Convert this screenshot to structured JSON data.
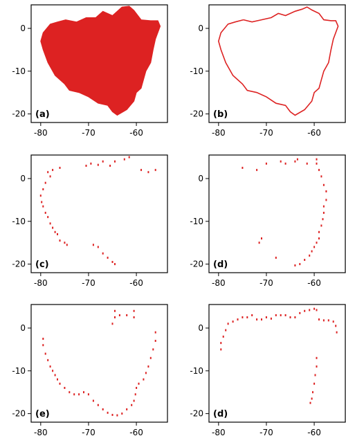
{
  "figure": {
    "background": "#ffffff",
    "series_color": "#dd2222"
  },
  "chart_data": [
    {
      "type": "scatter",
      "panel": "(a)",
      "description": "filled region",
      "xlim": [
        -82,
        -53.5
      ],
      "ylim": [
        -22,
        5.5
      ],
      "xticks": [
        "-80",
        "-70",
        "-60"
      ],
      "yticks": [
        "0",
        "-10",
        "-20"
      ],
      "fill": true,
      "outline": [
        [
          -74.8,
          2
        ],
        [
          -72.5,
          1.5
        ],
        [
          -70.5,
          2.5
        ],
        [
          -68.5,
          2.5
        ],
        [
          -67,
          4
        ],
        [
          -65,
          3
        ],
        [
          -63,
          5
        ],
        [
          -61.5,
          5.2
        ],
        [
          -60.5,
          4.2
        ],
        [
          -59,
          2
        ],
        [
          -57,
          1.8
        ],
        [
          -55.5,
          1.8
        ],
        [
          -55,
          0.5
        ],
        [
          -56,
          -2.5
        ],
        [
          -56.5,
          -5
        ],
        [
          -57,
          -8
        ],
        [
          -58,
          -10
        ],
        [
          -58.5,
          -12
        ],
        [
          -59,
          -14
        ],
        [
          -60,
          -15
        ],
        [
          -60.5,
          -17
        ],
        [
          -62,
          -19
        ],
        [
          -64,
          -20.3
        ],
        [
          -65,
          -19.5
        ],
        [
          -66,
          -18
        ],
        [
          -68,
          -17.5
        ],
        [
          -70,
          -16
        ],
        [
          -72,
          -15
        ],
        [
          -74,
          -14.5
        ],
        [
          -75,
          -13
        ],
        [
          -77,
          -11
        ],
        [
          -78.5,
          -8
        ],
        [
          -79.5,
          -5
        ],
        [
          -80,
          -3
        ],
        [
          -79.5,
          -1
        ],
        [
          -78,
          1
        ],
        [
          -76.5,
          1.5
        ]
      ]
    },
    {
      "type": "line",
      "panel": "(b)",
      "description": "boundary outline",
      "xlim": [
        -82,
        -53.5
      ],
      "ylim": [
        -22,
        5.5
      ],
      "xticks": [
        "-80",
        "-70",
        "-60"
      ],
      "yticks": [
        "0",
        "-10",
        "-20"
      ],
      "points": [
        [
          -74.8,
          2
        ],
        [
          -73,
          1.5
        ],
        [
          -71,
          2
        ],
        [
          -69,
          2.5
        ],
        [
          -67.5,
          3.5
        ],
        [
          -66,
          3
        ],
        [
          -64,
          4
        ],
        [
          -62.5,
          4.5
        ],
        [
          -61.5,
          5
        ],
        [
          -60.5,
          4.3
        ],
        [
          -59,
          3.5
        ],
        [
          -58,
          2
        ],
        [
          -56.5,
          1.8
        ],
        [
          -55.5,
          1.8
        ],
        [
          -55,
          0.5
        ],
        [
          -56,
          -2.5
        ],
        [
          -56.5,
          -5
        ],
        [
          -57,
          -8
        ],
        [
          -58,
          -10
        ],
        [
          -58.5,
          -12
        ],
        [
          -59,
          -14
        ],
        [
          -60,
          -15
        ],
        [
          -60.5,
          -17
        ],
        [
          -62,
          -19
        ],
        [
          -64,
          -20.3
        ],
        [
          -65,
          -19.5
        ],
        [
          -66,
          -18
        ],
        [
          -68,
          -17.5
        ],
        [
          -70,
          -16
        ],
        [
          -72,
          -15
        ],
        [
          -74,
          -14.5
        ],
        [
          -75,
          -13
        ],
        [
          -77,
          -11
        ],
        [
          -78.5,
          -8
        ],
        [
          -79.5,
          -5
        ],
        [
          -80,
          -3
        ],
        [
          -79.5,
          -1
        ],
        [
          -78,
          1
        ],
        [
          -76.5,
          1.5
        ],
        [
          -74.8,
          2
        ]
      ]
    },
    {
      "type": "scatter",
      "panel": "(c)",
      "description": "boundary points subset",
      "xlim": [
        -82,
        -53.5
      ],
      "ylim": [
        -22,
        5.5
      ],
      "xticks": [
        "-80",
        "-70",
        "-60"
      ],
      "yticks": [
        "0",
        "-10",
        "-20"
      ],
      "points": [
        [
          -78.5,
          1.5
        ],
        [
          -78,
          0.5
        ],
        [
          -77.5,
          2
        ],
        [
          -76,
          2.5
        ],
        [
          -79,
          -1
        ],
        [
          -79.5,
          -2.5
        ],
        [
          -80,
          -4
        ],
        [
          -79.8,
          -5.5
        ],
        [
          -79.5,
          -6.5
        ],
        [
          -79,
          -8
        ],
        [
          -78.5,
          -9
        ],
        [
          -78,
          -10.5
        ],
        [
          -77.5,
          -11.5
        ],
        [
          -77,
          -12.5
        ],
        [
          -76.5,
          -13
        ],
        [
          -76,
          -14.5
        ],
        [
          -75,
          -15
        ],
        [
          -74.5,
          -15.5
        ],
        [
          -70.5,
          3
        ],
        [
          -69.5,
          3.5
        ],
        [
          -68,
          3.2
        ],
        [
          -67,
          4
        ],
        [
          -65.5,
          3
        ],
        [
          -64.5,
          4
        ],
        [
          -62.5,
          4.5
        ],
        [
          -61.5,
          5
        ],
        [
          -59,
          2
        ],
        [
          -57.5,
          1.5
        ],
        [
          -56,
          2
        ],
        [
          -69,
          -15.5
        ],
        [
          -68,
          -16
        ],
        [
          -67,
          -17.5
        ],
        [
          -66,
          -18.5
        ],
        [
          -65,
          -19.5
        ],
        [
          -64.5,
          -20
        ]
      ]
    },
    {
      "type": "scatter",
      "panel": "(d)",
      "description": "boundary points subset",
      "xlim": [
        -82,
        -53.5
      ],
      "ylim": [
        -22,
        5.5
      ],
      "xticks": [
        "-80",
        "-70",
        "-60"
      ],
      "yticks": [
        "0",
        "-10",
        "-20"
      ],
      "points": [
        [
          -75,
          2.5
        ],
        [
          -72,
          2
        ],
        [
          -70,
          3.5
        ],
        [
          -67,
          4
        ],
        [
          -66,
          3.5
        ],
        [
          -64,
          4
        ],
        [
          -63.5,
          4.5
        ],
        [
          -61.5,
          3.5
        ],
        [
          -59.5,
          4.5
        ],
        [
          -59.5,
          3.5
        ],
        [
          -59,
          2
        ],
        [
          -58.5,
          0.5
        ],
        [
          -58,
          -1.5
        ],
        [
          -57.5,
          -3
        ],
        [
          -57.5,
          -5
        ],
        [
          -58,
          -6.5
        ],
        [
          -58,
          -8
        ],
        [
          -58.2,
          -9.5
        ],
        [
          -58.5,
          -11
        ],
        [
          -59,
          -12.5
        ],
        [
          -59,
          -14
        ],
        [
          -59.5,
          -15
        ],
        [
          -60,
          -16
        ],
        [
          -60.5,
          -17
        ],
        [
          -61,
          -18
        ],
        [
          -62,
          -19
        ],
        [
          -63,
          -20
        ],
        [
          -64,
          -20.3
        ],
        [
          -71,
          -14
        ],
        [
          -71.5,
          -15
        ],
        [
          -68,
          -18.5
        ]
      ]
    },
    {
      "type": "scatter",
      "panel": "(e)",
      "description": "boundary points subset",
      "xlim": [
        -82,
        -53.5
      ],
      "ylim": [
        -22,
        5.5
      ],
      "xticks": [
        "-80",
        "-70",
        "-60"
      ],
      "yticks": [
        "0",
        "-10",
        "-20"
      ],
      "points": [
        [
          -79.5,
          -2.5
        ],
        [
          -79.5,
          -4
        ],
        [
          -79,
          -6
        ],
        [
          -78.5,
          -7.5
        ],
        [
          -78,
          -9
        ],
        [
          -77.5,
          -10
        ],
        [
          -77,
          -11
        ],
        [
          -76.5,
          -12
        ],
        [
          -76,
          -13
        ],
        [
          -75,
          -14
        ],
        [
          -74,
          -15
        ],
        [
          -73,
          -15.5
        ],
        [
          -72,
          -15.5
        ],
        [
          -71,
          -15
        ],
        [
          -70,
          -15.5
        ],
        [
          -69,
          -17
        ],
        [
          -68,
          -18
        ],
        [
          -67,
          -19
        ],
        [
          -66,
          -19.8
        ],
        [
          -65,
          -20.3
        ],
        [
          -64,
          -20.4
        ],
        [
          -63,
          -20
        ],
        [
          -62,
          -19
        ],
        [
          -61,
          -18
        ],
        [
          -60.5,
          -17
        ],
        [
          -60.2,
          -15.5
        ],
        [
          -60,
          -14
        ],
        [
          -59.5,
          -13
        ],
        [
          -58.5,
          -12
        ],
        [
          -58,
          -10.5
        ],
        [
          -57.5,
          -9
        ],
        [
          -57,
          -7
        ],
        [
          -56.5,
          -5
        ],
        [
          -56,
          -3
        ],
        [
          -56,
          -1
        ],
        [
          -65,
          1
        ],
        [
          -64.5,
          2.5
        ],
        [
          -64.5,
          4
        ],
        [
          -63.5,
          3
        ],
        [
          -62,
          3
        ],
        [
          -60.5,
          4
        ],
        [
          -60.5,
          2.5
        ]
      ]
    },
    {
      "type": "scatter",
      "panel": "(d)",
      "description": "boundary points subset",
      "xlim": [
        -82,
        -53.5
      ],
      "ylim": [
        -22,
        5.5
      ],
      "xticks": [
        "-80",
        "-70",
        "-60"
      ],
      "yticks": [
        "0",
        "-10",
        "-20"
      ],
      "points": [
        [
          -79.5,
          -5
        ],
        [
          -79.5,
          -3.5
        ],
        [
          -79,
          -2
        ],
        [
          -78.5,
          -0.5
        ],
        [
          -78,
          1
        ],
        [
          -77,
          1.5
        ],
        [
          -76,
          2
        ],
        [
          -75,
          2.5
        ],
        [
          -74,
          2.5
        ],
        [
          -73,
          3
        ],
        [
          -72,
          2
        ],
        [
          -71,
          2
        ],
        [
          -70,
          2.5
        ],
        [
          -69,
          2.2
        ],
        [
          -68,
          3
        ],
        [
          -67,
          3
        ],
        [
          -66,
          3
        ],
        [
          -65,
          2.5
        ],
        [
          -64,
          2.5
        ],
        [
          -63,
          3.5
        ],
        [
          -62,
          4
        ],
        [
          -61,
          4.2
        ],
        [
          -60,
          4.5
        ],
        [
          -59.5,
          4.2
        ],
        [
          -59,
          2
        ],
        [
          -58,
          1.8
        ],
        [
          -57,
          1.8
        ],
        [
          -56,
          1.5
        ],
        [
          -55.5,
          0.5
        ],
        [
          -55.3,
          -1
        ],
        [
          -59.5,
          -7
        ],
        [
          -59.5,
          -9
        ],
        [
          -59.8,
          -11
        ],
        [
          -60,
          -13
        ],
        [
          -60.3,
          -15
        ],
        [
          -60.5,
          -16.5
        ],
        [
          -60.8,
          -17.5
        ]
      ]
    }
  ]
}
